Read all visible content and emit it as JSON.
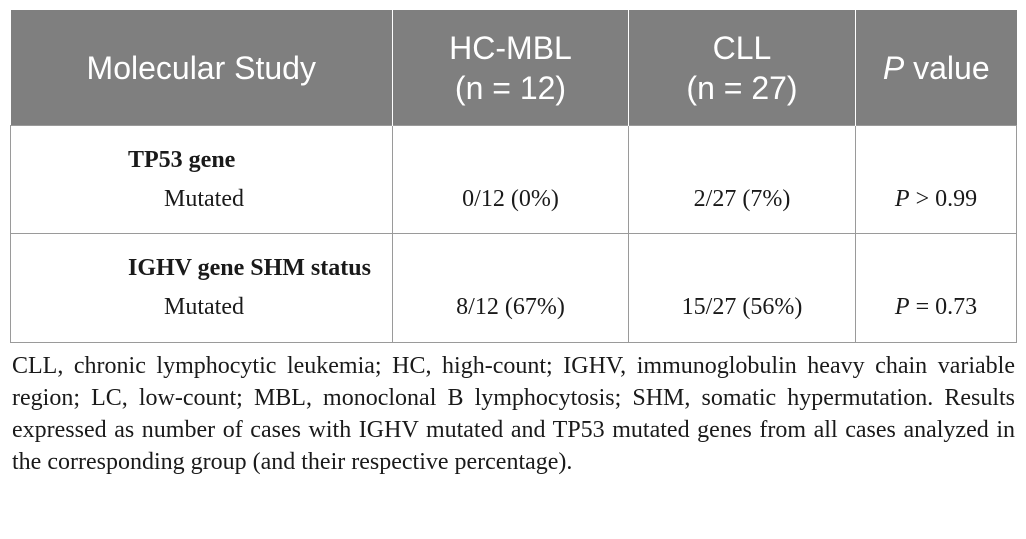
{
  "table": {
    "headers": {
      "col1": "Molecular Study",
      "col2_line1": "HC-MBL",
      "col2_line2": "(n = 12)",
      "col3_line1": "CLL",
      "col3_line2": "(n = 27)",
      "col4_italic": "P",
      "col4_rest": " value"
    },
    "rows": [
      {
        "group": "TP53 gene",
        "sub": "Mutated",
        "hc_mbl": "0/12 (0%)",
        "cll": "2/27 (7%)",
        "p_symbol": "P",
        "p_rest": " > 0.99"
      },
      {
        "group": "IGHV gene SHM status",
        "sub": "Mutated",
        "hc_mbl": "8/12 (67%)",
        "cll": "15/27 (56%)",
        "p_symbol": "P",
        "p_rest": " = 0.73"
      }
    ]
  },
  "footnote": "CLL, chronic lymphocytic leukemia; HC, high-count; IGHV, immunoglobulin heavy chain variable region; LC, low-count; MBL, monoclonal B lymphocytosis; SHM, somatic hypermutation. Results expressed as number of cases with IGHV mutated and TP53 mutated genes from all cases analyzed in the corresponding group (and their respective percentage).",
  "colors": {
    "header_bg": "#7f7f7f",
    "header_text": "#ffffff",
    "border": "#9a9a9a",
    "body_text": "#1a1a1a"
  }
}
